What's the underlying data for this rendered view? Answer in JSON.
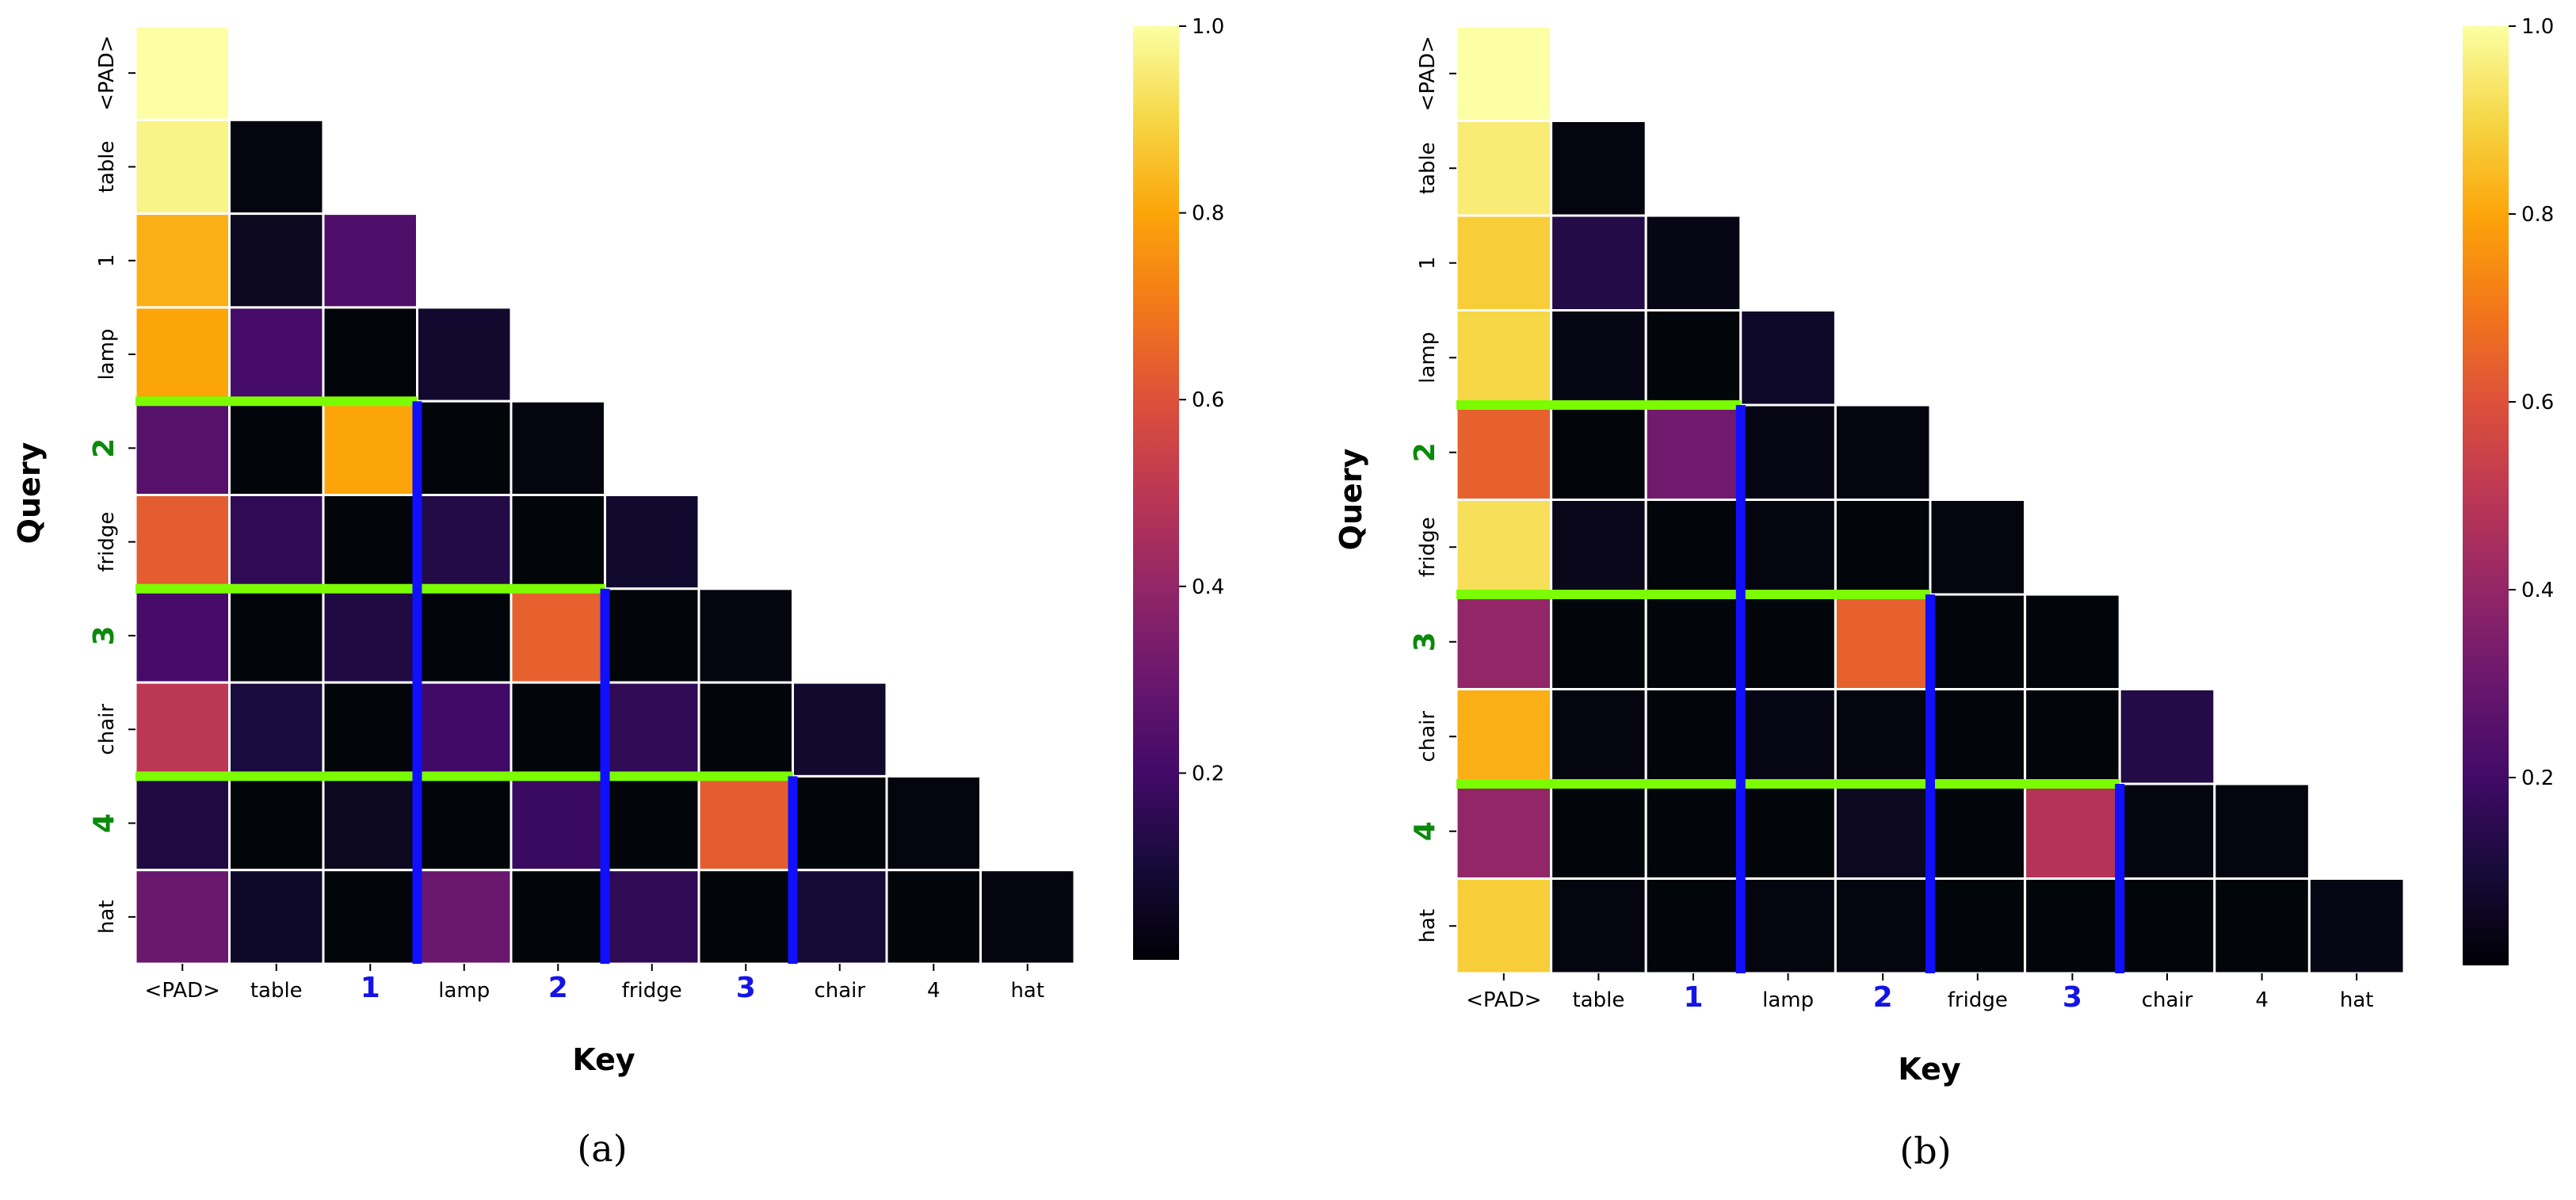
{
  "chart_data": [
    {
      "type": "heatmap",
      "caption": "(a)",
      "xlabel": "Key",
      "ylabel": "Query",
      "labels": [
        "<PAD>",
        "table",
        "1",
        "lamp",
        "2",
        "fridge",
        "3",
        "chair",
        "4",
        "hat"
      ],
      "highlighted_keys": [
        "1",
        "2",
        "3"
      ],
      "highlighted_queries": [
        "2",
        "3",
        "4"
      ],
      "mask": "lower-triangular",
      "values": [
        [
          1.0
        ],
        [
          0.97,
          0.02
        ],
        [
          0.82,
          0.05,
          0.23
        ],
        [
          0.8,
          0.21,
          0.01,
          0.08
        ],
        [
          0.25,
          0.01,
          0.8,
          0.01,
          0.02
        ],
        [
          0.63,
          0.16,
          0.01,
          0.13,
          0.01,
          0.08
        ],
        [
          0.21,
          0.01,
          0.12,
          0.01,
          0.64,
          0.01,
          0.02
        ],
        [
          0.5,
          0.11,
          0.01,
          0.2,
          0.01,
          0.16,
          0.01,
          0.08
        ],
        [
          0.12,
          0.01,
          0.05,
          0.01,
          0.18,
          0.01,
          0.63,
          0.01,
          0.02
        ],
        [
          0.3,
          0.07,
          0.01,
          0.3,
          0.01,
          0.16,
          0.01,
          0.09,
          0.01,
          0.02
        ]
      ],
      "colorbar": {
        "cmap": "inferno",
        "range": [
          0.0,
          1.0
        ],
        "ticks": [
          "0.2",
          "0.4",
          "0.6",
          "0.8",
          "1.0"
        ]
      }
    },
    {
      "type": "heatmap",
      "caption": "(b)",
      "xlabel": "Key",
      "ylabel": "Query",
      "labels": [
        "<PAD>",
        "table",
        "1",
        "lamp",
        "2",
        "fridge",
        "3",
        "chair",
        "4",
        "hat"
      ],
      "highlighted_keys": [
        "1",
        "2",
        "3"
      ],
      "highlighted_queries": [
        "2",
        "3",
        "4"
      ],
      "mask": "lower-triangular",
      "values": [
        [
          1.0
        ],
        [
          0.95,
          0.02
        ],
        [
          0.88,
          0.13,
          0.03
        ],
        [
          0.9,
          0.03,
          0.01,
          0.07
        ],
        [
          0.64,
          0.01,
          0.32,
          0.03,
          0.02
        ],
        [
          0.92,
          0.04,
          0.01,
          0.02,
          0.01,
          0.02
        ],
        [
          0.4,
          0.01,
          0.01,
          0.01,
          0.64,
          0.01,
          0.01
        ],
        [
          0.82,
          0.02,
          0.01,
          0.03,
          0.02,
          0.01,
          0.01,
          0.13
        ],
        [
          0.4,
          0.01,
          0.01,
          0.01,
          0.05,
          0.01,
          0.48,
          0.02,
          0.02
        ],
        [
          0.88,
          0.02,
          0.01,
          0.02,
          0.02,
          0.01,
          0.01,
          0.01,
          0.01,
          0.03
        ]
      ],
      "colorbar": {
        "cmap": "inferno",
        "range": [
          0.0,
          1.0
        ],
        "ticks": [
          "0.2",
          "0.4",
          "0.6",
          "0.8",
          "1.0"
        ]
      }
    }
  ],
  "colors": {
    "highlight_row_line": "#7cfc00",
    "highlight_col_line": "#1010ff",
    "highlight_query_label": "#0a8a0a",
    "highlight_key_label": "#1414e6",
    "cell_border": "#ffffff"
  }
}
